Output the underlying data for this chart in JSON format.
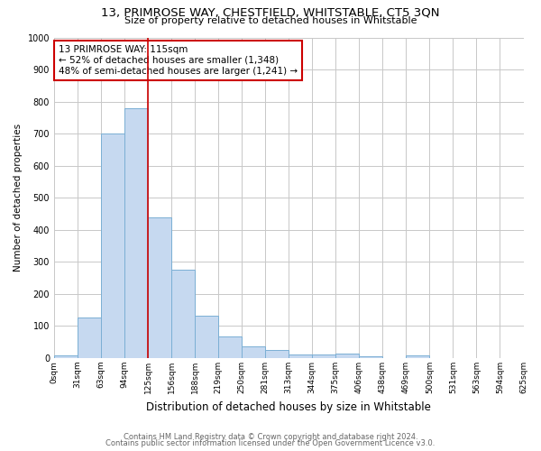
{
  "title": "13, PRIMROSE WAY, CHESTFIELD, WHITSTABLE, CT5 3QN",
  "subtitle": "Size of property relative to detached houses in Whitstable",
  "xlabel": "Distribution of detached houses by size in Whitstable",
  "ylabel": "Number of detached properties",
  "bin_labels": [
    "0sqm",
    "31sqm",
    "63sqm",
    "94sqm",
    "125sqm",
    "156sqm",
    "188sqm",
    "219sqm",
    "250sqm",
    "281sqm",
    "313sqm",
    "344sqm",
    "375sqm",
    "406sqm",
    "438sqm",
    "469sqm",
    "500sqm",
    "531sqm",
    "563sqm",
    "594sqm",
    "625sqm"
  ],
  "bar_values": [
    8,
    128,
    700,
    780,
    440,
    275,
    132,
    68,
    38,
    25,
    12,
    12,
    13,
    7,
    0,
    8,
    0,
    0,
    0,
    0
  ],
  "bar_color": "#c6d9f0",
  "bar_edge_color": "#7bafd4",
  "vline_x": 4,
  "vline_color": "#cc0000",
  "annotation_text": "13 PRIMROSE WAY: 115sqm\n← 52% of detached houses are smaller (1,348)\n48% of semi-detached houses are larger (1,241) →",
  "annotation_box_color": "#ffffff",
  "annotation_box_edge": "#cc0000",
  "ylim": [
    0,
    1000
  ],
  "footer1": "Contains HM Land Registry data © Crown copyright and database right 2024.",
  "footer2": "Contains public sector information licensed under the Open Government Licence v3.0.",
  "background_color": "#ffffff",
  "grid_color": "#c8c8c8"
}
